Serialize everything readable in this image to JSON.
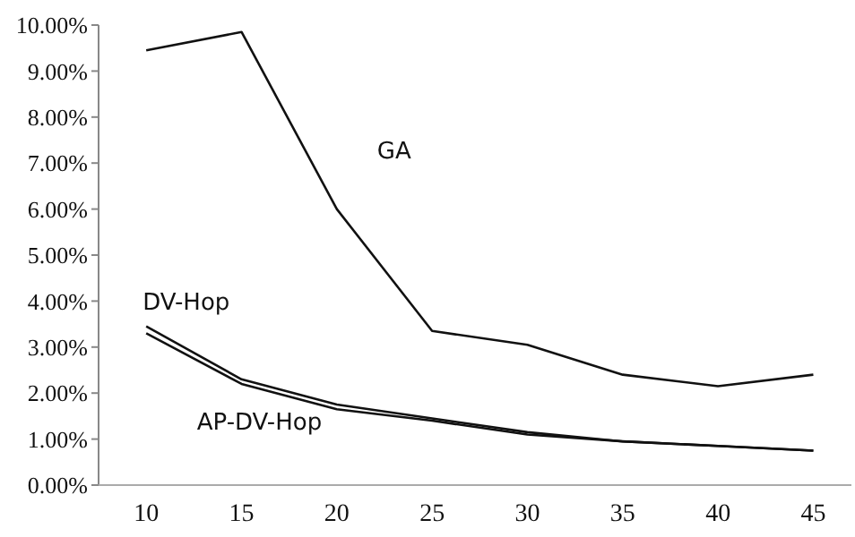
{
  "chart_data": {
    "type": "line",
    "x": [
      10,
      15,
      20,
      25,
      30,
      35,
      40,
      45
    ],
    "series": [
      {
        "name": "GA",
        "color": "#111111",
        "values": [
          9.45,
          9.85,
          6.0,
          3.35,
          3.05,
          2.4,
          2.15,
          2.4
        ]
      },
      {
        "name": "DV-Hop",
        "color": "#111111",
        "values": [
          3.45,
          2.3,
          1.75,
          1.45,
          1.15,
          0.95,
          0.85,
          0.75
        ]
      },
      {
        "name": "AP-DV-Hop",
        "color": "#111111",
        "values": [
          3.3,
          2.2,
          1.65,
          1.4,
          1.1,
          0.95,
          0.85,
          0.75
        ]
      }
    ],
    "xlim": [
      7.5,
      47
    ],
    "xticks": [
      10,
      15,
      20,
      25,
      30,
      35,
      40,
      45
    ],
    "ylim": [
      0,
      10
    ],
    "yticks": [
      {
        "value": 0,
        "label": "0.00%"
      },
      {
        "value": 1,
        "label": "1.00%"
      },
      {
        "value": 2,
        "label": "2.00%"
      },
      {
        "value": 3,
        "label": "3.00%"
      },
      {
        "value": 4,
        "label": "4.00%"
      },
      {
        "value": 5,
        "label": "5.00%"
      },
      {
        "value": 6,
        "label": "6.00%"
      },
      {
        "value": 7,
        "label": "7.00%"
      },
      {
        "value": 8,
        "label": "8.00%"
      },
      {
        "value": 9,
        "label": "9.00%"
      },
      {
        "value": 10,
        "label": "10.00%"
      }
    ],
    "grid": false,
    "legend": false,
    "marker": "none",
    "line_style": "solid"
  }
}
